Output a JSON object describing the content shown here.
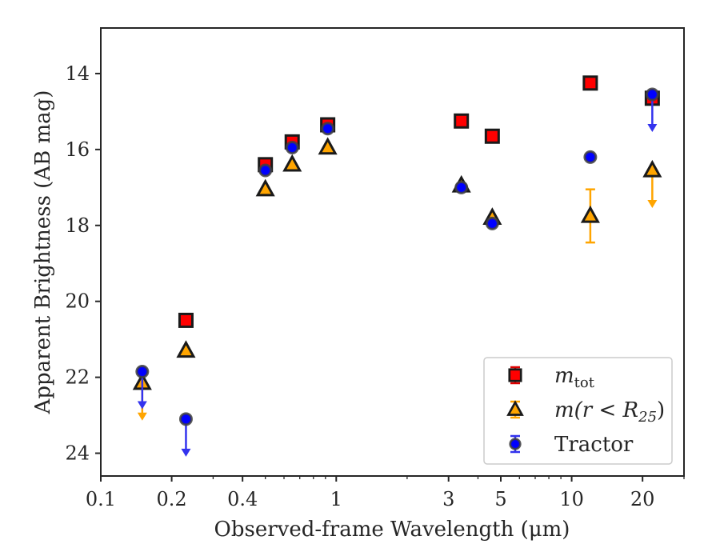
{
  "chart_data": {
    "type": "scatter",
    "xlabel": "Observed-frame Wavelength (μm)",
    "ylabel": "Apparent Brightness (AB mag)",
    "xscale": "log",
    "xlim": [
      0.1,
      30
    ],
    "ylim": [
      24.6,
      12.8
    ],
    "y_inverted": true,
    "x_ticks": [
      {
        "value": 0.1,
        "label": "0.1"
      },
      {
        "value": 0.2,
        "label": "0.2"
      },
      {
        "value": 0.4,
        "label": "0.4"
      },
      {
        "value": 1,
        "label": "1"
      },
      {
        "value": 3,
        "label": "3"
      },
      {
        "value": 5,
        "label": "5"
      },
      {
        "value": 10,
        "label": "10"
      },
      {
        "value": 20,
        "label": "20"
      }
    ],
    "y_ticks": [
      {
        "value": 14,
        "label": "14"
      },
      {
        "value": 16,
        "label": "16"
      },
      {
        "value": 18,
        "label": "18"
      },
      {
        "value": 20,
        "label": "20"
      },
      {
        "value": 22,
        "label": "22"
      },
      {
        "value": 24,
        "label": "24"
      }
    ],
    "grid": false,
    "legend_position": "lower-right",
    "series": [
      {
        "name": "m_tot",
        "legend_main": "m",
        "legend_sub": "tot",
        "marker": "square",
        "face_color": "#ff0000",
        "edge_color": "#1a1a1a",
        "error_color": "#dd0000",
        "points": [
          {
            "x": 0.23,
            "y": 20.5
          },
          {
            "x": 0.5,
            "y": 16.4
          },
          {
            "x": 0.65,
            "y": 15.8
          },
          {
            "x": 0.92,
            "y": 15.35
          },
          {
            "x": 3.4,
            "y": 15.25
          },
          {
            "x": 4.6,
            "y": 15.65
          },
          {
            "x": 12,
            "y": 14.25
          },
          {
            "x": 22,
            "y": 14.65
          }
        ]
      },
      {
        "name": "m(r < R_25)",
        "legend_main": "m(r < R",
        "legend_sub": "25",
        "legend_end": ")",
        "marker": "triangle",
        "face_color": "#ffa500",
        "edge_color": "#1a1a1a",
        "error_color": "#ffa500",
        "points": [
          {
            "x": 0.15,
            "y": 22.15,
            "upper_limit": true
          },
          {
            "x": 0.23,
            "y": 21.3
          },
          {
            "x": 0.5,
            "y": 17.05
          },
          {
            "x": 0.65,
            "y": 16.4
          },
          {
            "x": 0.92,
            "y": 15.95
          },
          {
            "x": 3.4,
            "y": 16.95
          },
          {
            "x": 4.6,
            "y": 17.8
          },
          {
            "x": 12,
            "y": 17.75,
            "yerr": 0.7
          },
          {
            "x": 22,
            "y": 16.55,
            "upper_limit": true
          }
        ]
      },
      {
        "name": "Tractor",
        "legend_main": "Tractor",
        "marker": "circle",
        "face_color": "#0000ff",
        "edge_color": "#404040",
        "error_color": "#3333ee",
        "points": [
          {
            "x": 0.15,
            "y": 21.85,
            "upper_limit": true
          },
          {
            "x": 0.23,
            "y": 23.1,
            "upper_limit": true
          },
          {
            "x": 0.5,
            "y": 16.55
          },
          {
            "x": 0.65,
            "y": 15.95
          },
          {
            "x": 0.92,
            "y": 15.45
          },
          {
            "x": 3.4,
            "y": 17.0
          },
          {
            "x": 4.6,
            "y": 17.95
          },
          {
            "x": 12,
            "y": 16.2
          },
          {
            "x": 22,
            "y": 14.55,
            "upper_limit": true
          }
        ]
      }
    ]
  }
}
